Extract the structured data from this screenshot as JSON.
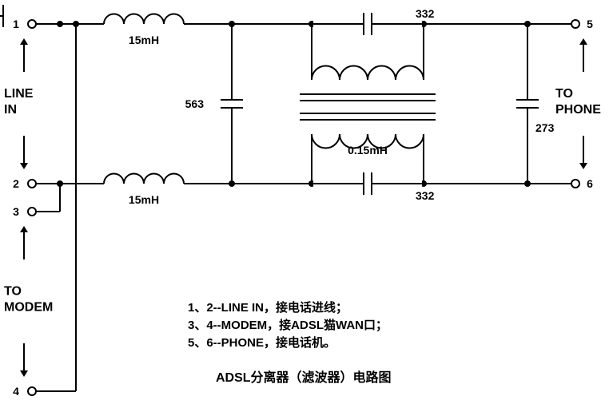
{
  "diagram": {
    "title": "ADSL分离器（滤波器）电路图",
    "terminals": {
      "t1": "1",
      "t2": "2",
      "t3": "3",
      "t4": "4",
      "t5": "5",
      "t6": "6"
    },
    "port_labels": {
      "line_in_1": "LINE",
      "line_in_2": "IN",
      "to_modem_1": "TO",
      "to_modem_2": "MODEM",
      "to_phone_1": "TO",
      "to_phone_2": "PHONE"
    },
    "components": {
      "L1": "15mH",
      "L2": "15mH",
      "C563": "563",
      "C332a": "332",
      "C332b": "332",
      "C273": "273",
      "T1": "0.15mH"
    },
    "legend": {
      "line1": "1、2--LINE IN，接电话进线；",
      "line2": "3、4--MODEM，接ADSL猫WAN口；",
      "line3": "5、6--PHONE，接电话机。"
    },
    "style": {
      "stroke": "#000000",
      "stroke_width": 2,
      "node_radius": 4,
      "terminal_radius": 5,
      "arrow_size": 8
    }
  }
}
